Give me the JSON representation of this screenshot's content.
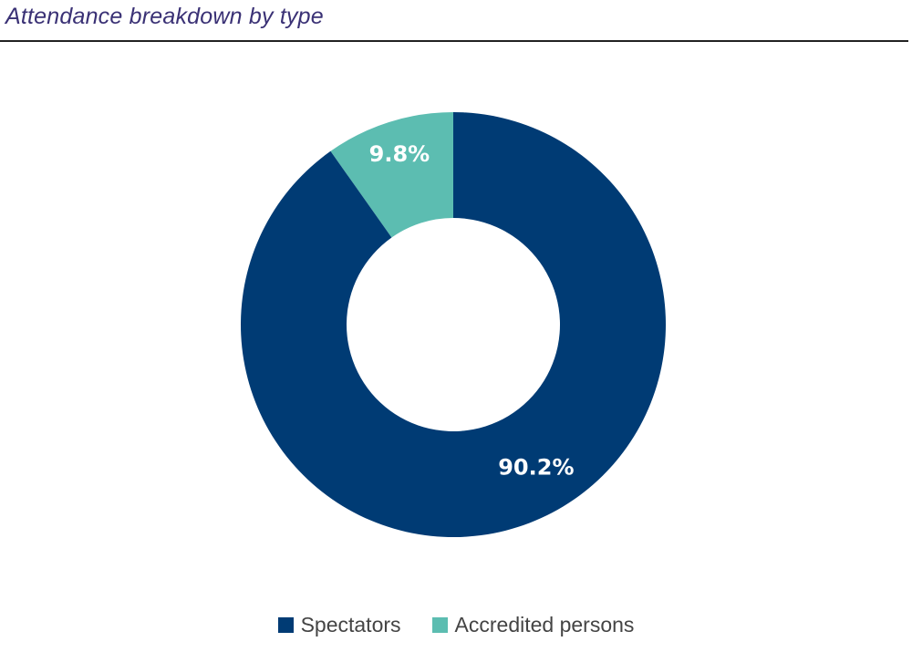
{
  "chart_data": {
    "type": "pie",
    "title": "Attendance breakdown by type",
    "donut": true,
    "categories": [
      "Accredited persons",
      "Spectators"
    ],
    "values": [
      9.8,
      90.2
    ],
    "value_labels": [
      "9.8%",
      "90.2%"
    ],
    "unit": "%",
    "colors": [
      "#5cbdb1",
      "#003b74"
    ],
    "legend": {
      "placement": "bottom",
      "items": [
        {
          "label": "Spectators",
          "color": "#003b74"
        },
        {
          "label": "Accredited persons",
          "color": "#5cbdb1"
        }
      ]
    }
  }
}
